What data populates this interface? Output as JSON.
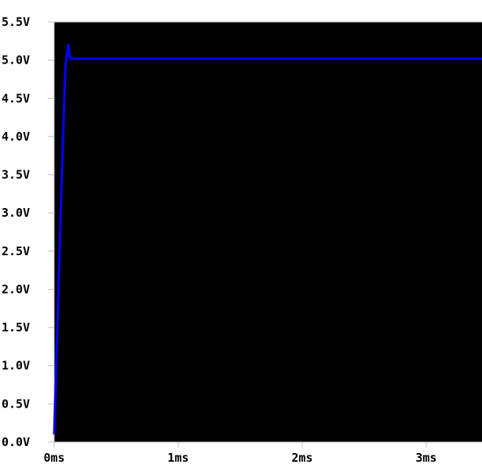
{
  "chart_data": {
    "type": "line",
    "title": "",
    "xlabel": "",
    "ylabel": "",
    "xlim": [
      0,
      3.45
    ],
    "ylim": [
      0,
      5.5
    ],
    "x_ticks": [
      {
        "value": 0,
        "label": "0ms"
      },
      {
        "value": 1,
        "label": "1ms"
      },
      {
        "value": 2,
        "label": "2ms"
      },
      {
        "value": 3,
        "label": "3ms"
      }
    ],
    "y_ticks": [
      {
        "value": 0.0,
        "label": "0.0V"
      },
      {
        "value": 0.5,
        "label": "0.5V"
      },
      {
        "value": 1.0,
        "label": "1.0V"
      },
      {
        "value": 1.5,
        "label": "1.5V"
      },
      {
        "value": 2.0,
        "label": "2.0V"
      },
      {
        "value": 2.5,
        "label": "2.5V"
      },
      {
        "value": 3.0,
        "label": "3.0V"
      },
      {
        "value": 3.5,
        "label": "3.5V"
      },
      {
        "value": 4.0,
        "label": "4.0V"
      },
      {
        "value": 4.5,
        "label": "4.5V"
      },
      {
        "value": 5.0,
        "label": "5.0V"
      },
      {
        "value": 5.5,
        "label": "5.5V"
      }
    ],
    "grid": false,
    "series": [
      {
        "color": "#0000ff",
        "x": [
          0,
          0.02,
          0.06,
          0.09,
          0.105,
          0.115,
          0.12,
          0.125,
          0.135,
          0.15,
          0.2,
          0.5,
          1.0,
          1.5,
          2.0,
          2.5,
          3.0,
          3.45
        ],
        "y": [
          0.1,
          1.2,
          3.4,
          4.9,
          5.1,
          5.2,
          5.12,
          5.05,
          5.02,
          5.02,
          5.02,
          5.02,
          5.02,
          5.02,
          5.02,
          5.02,
          5.02,
          5.02
        ]
      }
    ]
  },
  "colors": {
    "plot_background": "#000000",
    "axis": "#c0c0c0",
    "trace": "#0000ff",
    "label": "#000000"
  }
}
